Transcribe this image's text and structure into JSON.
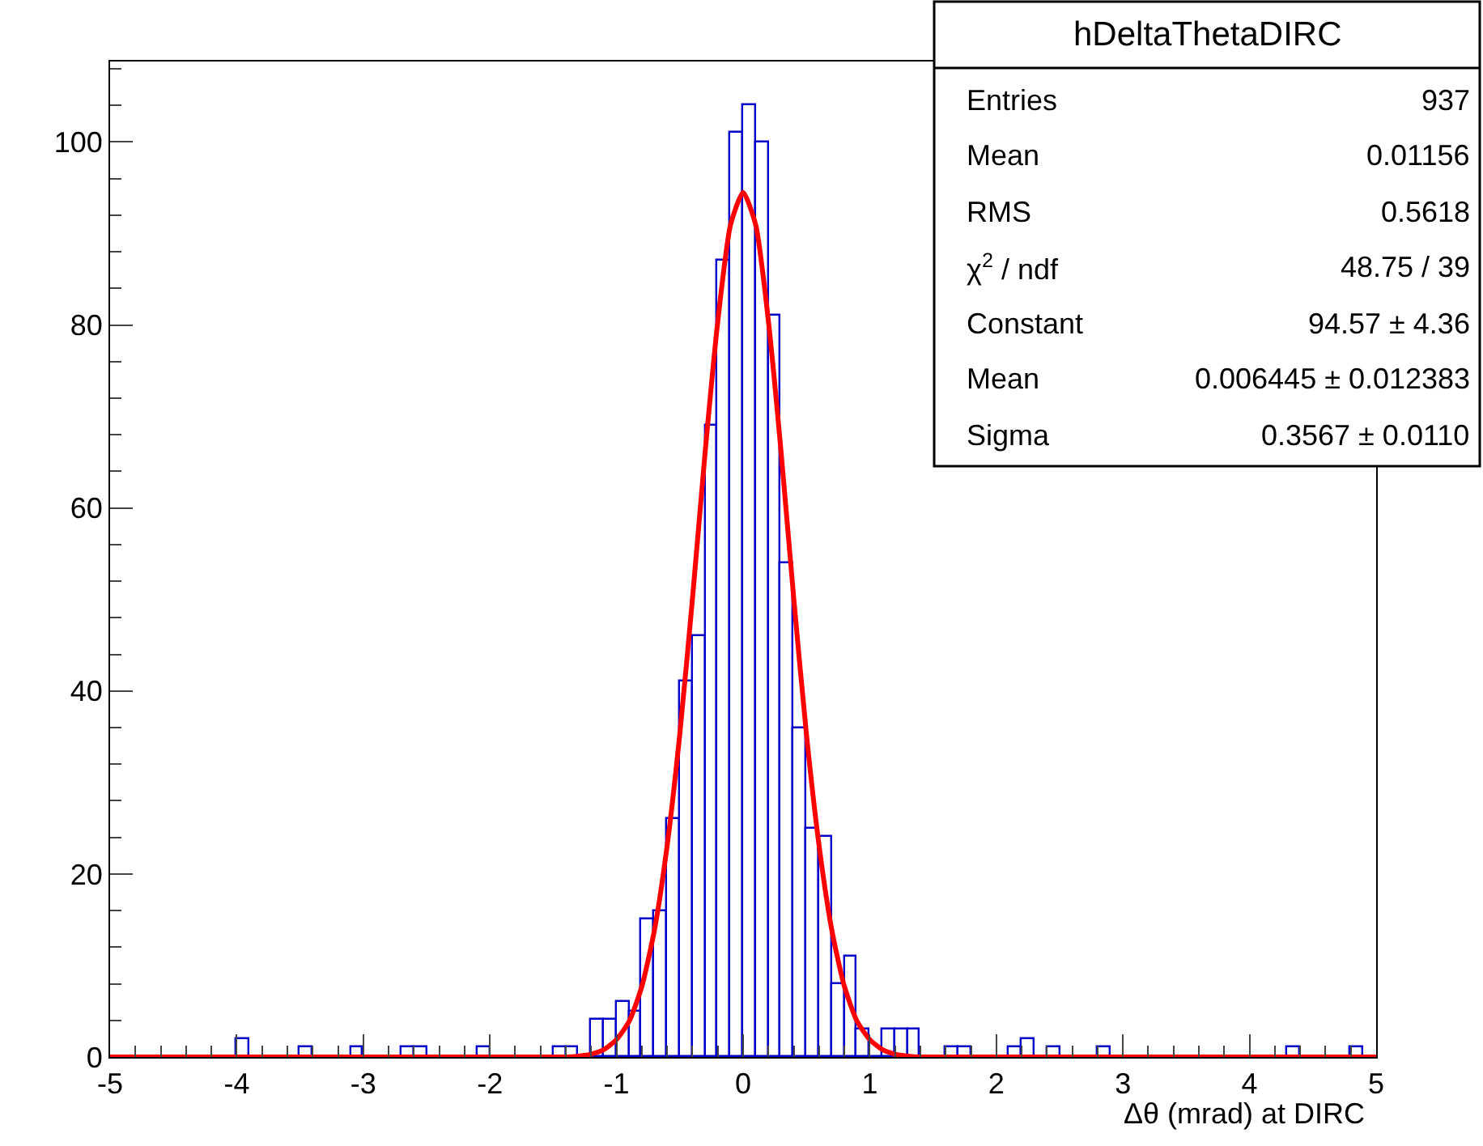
{
  "chart_data": {
    "type": "histogram",
    "title": "hDeltaThetaDIRC",
    "xlabel": "Δθ (mrad) at DIRC",
    "annotations": [
      "Entries",
      "937",
      "Mean",
      "0.01156",
      "RMS",
      "0.5618",
      "χ$^{2}$ / ndf",
      "48.75 / 39",
      "Constant",
      "94.57 ± 4.36",
      "Mean",
      "0.006445 ± 0.012383",
      "Sigma",
      "0.3567 ± 0.0110"
    ],
    "xlim": [
      -5,
      5
    ],
    "ylim": [
      0,
      108.8
    ],
    "xticks": [
      -5,
      -4,
      -3,
      -2,
      -1,
      0,
      1,
      2,
      3,
      4,
      5
    ],
    "yticks": [
      0,
      20,
      40,
      60,
      80,
      100
    ],
    "series": [
      {
        "color": "#0000cc",
        "bins": [
          -5.0,
          -4.9,
          -4.8,
          -4.7,
          -4.6,
          -4.5,
          -4.4,
          -4.3,
          -4.2,
          -4.1,
          -4.0,
          -3.9,
          -3.8,
          -3.7,
          -3.6,
          -3.5,
          -3.4,
          -3.3,
          -3.2,
          -3.1,
          -3.0,
          -2.9,
          -2.8,
          -2.7,
          -2.6,
          -2.5,
          -2.4,
          -2.3,
          -2.2,
          -2.1,
          -2.0,
          -1.9,
          -1.8,
          -1.7,
          -1.6,
          -1.5,
          -1.4,
          -1.3,
          -1.2,
          -1.1,
          -1.0,
          -0.9,
          -0.8,
          -0.7,
          -0.6,
          -0.5,
          -0.4,
          -0.3,
          -0.2,
          -0.1,
          0.0,
          0.1,
          0.2,
          0.3,
          0.4,
          0.5,
          0.6,
          0.7,
          0.8,
          0.9,
          1.0,
          1.1,
          1.2,
          1.3,
          1.4,
          1.5,
          1.6,
          1.7,
          1.8,
          1.9,
          2.0,
          2.1,
          2.2,
          2.3,
          2.4,
          2.5,
          2.6,
          2.7,
          2.8,
          2.9,
          3.0,
          3.1,
          3.2,
          3.3,
          3.4,
          3.5,
          3.6,
          3.7,
          3.8,
          3.9,
          4.0,
          4.1,
          4.2,
          4.3,
          4.4,
          4.5,
          4.6,
          4.7,
          4.8,
          4.9,
          5.0
        ],
        "values": [
          0,
          0,
          0,
          0,
          0,
          0,
          0,
          0,
          0,
          0,
          2,
          0,
          0,
          0,
          0,
          1,
          0,
          0,
          0,
          1,
          0,
          0,
          0,
          1,
          1,
          0,
          0,
          0,
          0,
          1,
          0,
          0,
          0,
          0,
          0,
          1,
          1,
          0,
          4,
          4,
          6,
          5,
          15,
          16,
          26,
          41,
          46,
          69,
          87,
          101,
          104,
          100,
          81,
          54,
          36,
          25,
          24,
          8,
          11,
          3,
          0,
          3,
          3,
          3,
          0,
          0,
          1,
          1,
          0,
          0,
          0,
          1,
          2,
          0,
          1,
          0,
          0,
          0,
          1,
          0,
          0,
          0,
          0,
          0,
          0,
          0,
          0,
          0,
          0,
          0,
          0,
          0,
          0,
          1,
          0,
          0,
          0,
          0,
          1,
          0
        ]
      },
      {
        "type": "line",
        "color": "#ff0000",
        "x": [
          -5,
          -1.4,
          -1.3,
          -1.2,
          -1.1,
          -1.0,
          -0.9,
          -0.8,
          -0.7,
          -0.6,
          -0.5,
          -0.4,
          -0.3,
          -0.2,
          -0.1,
          0.0,
          0.1,
          0.2,
          0.3,
          0.4,
          0.5,
          0.6,
          0.7,
          0.8,
          0.9,
          1.0,
          1.1,
          1.2,
          1.3,
          1.4,
          5
        ],
        "values": [
          0,
          0,
          0.1,
          0.3,
          0.8,
          1.9,
          3.9,
          7.7,
          13.9,
          23.1,
          35.3,
          50.1,
          66.1,
          80.4,
          90.9,
          94.5,
          90.9,
          80.4,
          66.1,
          50.1,
          35.3,
          23.1,
          13.9,
          7.7,
          3.9,
          1.9,
          0.8,
          0.3,
          0.1,
          0,
          0
        ]
      }
    ]
  }
}
